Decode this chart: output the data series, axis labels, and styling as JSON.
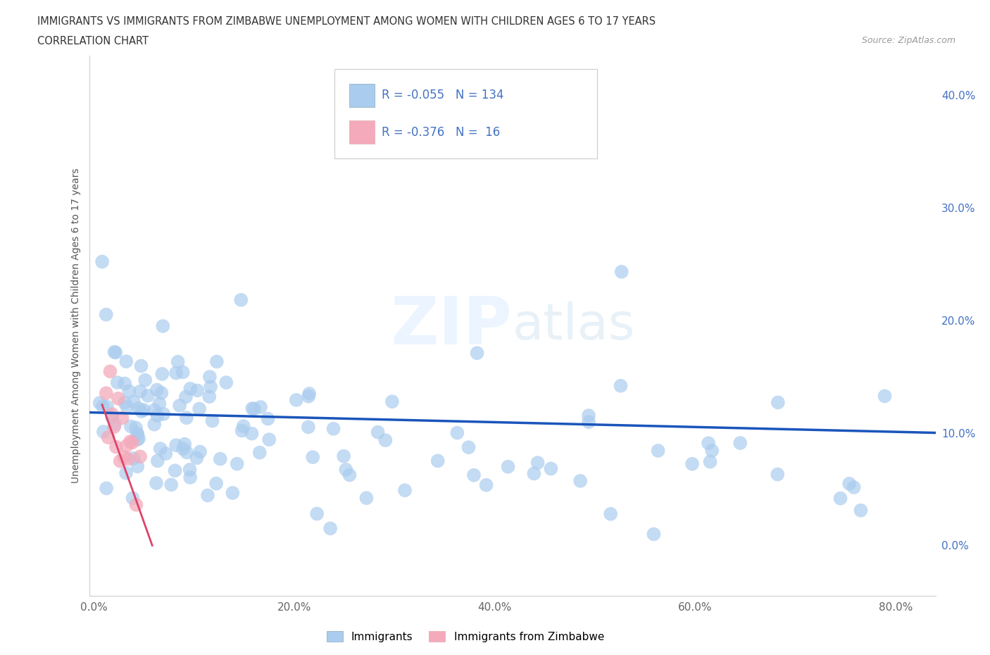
{
  "title_line1": "IMMIGRANTS VS IMMIGRANTS FROM ZIMBABWE UNEMPLOYMENT AMONG WOMEN WITH CHILDREN AGES 6 TO 17 YEARS",
  "title_line2": "CORRELATION CHART",
  "source_text": "Source: ZipAtlas.com",
  "ylabel": "Unemployment Among Women with Children Ages 6 to 17 years",
  "xlabel_ticks": [
    "0.0%",
    "20.0%",
    "40.0%",
    "60.0%",
    "80.0%"
  ],
  "xlabel_vals": [
    0.0,
    0.2,
    0.4,
    0.6,
    0.8
  ],
  "ylabel_ticks": [
    "0.0%",
    "10.0%",
    "20.0%",
    "30.0%",
    "40.0%"
  ],
  "ylabel_vals": [
    0.0,
    0.1,
    0.2,
    0.3,
    0.4
  ],
  "xlim": [
    -0.005,
    0.84
  ],
  "ylim": [
    -0.045,
    0.435
  ],
  "R_immigrants": -0.055,
  "N_immigrants": 134,
  "R_zimbabwe": -0.376,
  "N_zimbabwe": 16,
  "color_immigrants": "#aaccee",
  "color_zimbabwe": "#f4aabb",
  "color_line_immigrants": "#1a55bb",
  "color_line_zimbabwe": "#dd4466",
  "legend_text_color": "#4472c4"
}
